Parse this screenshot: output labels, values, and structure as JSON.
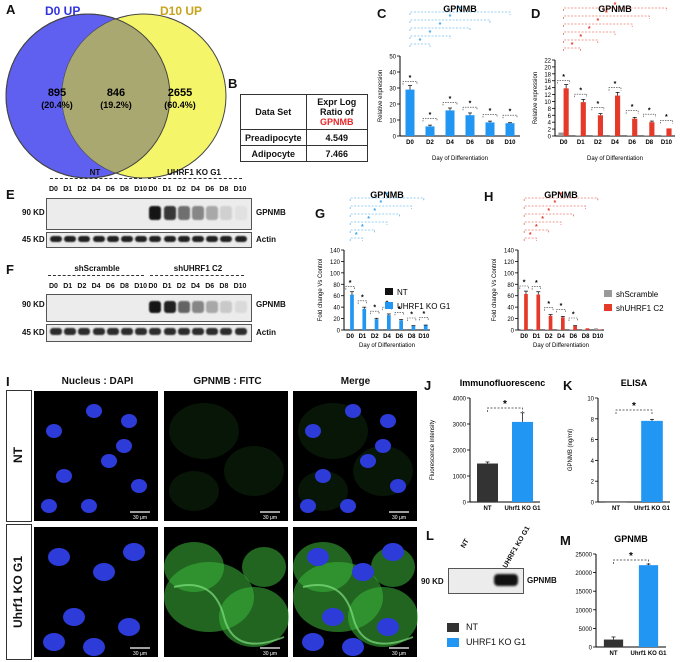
{
  "panels": {
    "A": "A",
    "B": "B",
    "C": "C",
    "D": "D",
    "E": "E",
    "F": "F",
    "G": "G",
    "H": "H",
    "I": "I",
    "J": "J",
    "K": "K",
    "L": "L",
    "M": "M"
  },
  "venn": {
    "left_label": "D0 UP",
    "right_label": "D10 UP",
    "left_count": "895",
    "left_pct": "(20.4%)",
    "mid_count": "846",
    "mid_pct": "(19.2%)",
    "right_count": "2655",
    "right_pct": "(60.4%)",
    "left_color": "#5f5ff0",
    "right_color": "#f5f56a",
    "mid_color": "#a9a870"
  },
  "table": {
    "h1": "Data Set",
    "h2a": "Expr Log Ratio of",
    "h2b": "GPNMB",
    "r1a": "Preadipocyte",
    "r1b": "4.549",
    "r2a": "Adipocyte",
    "r2b": "7.466"
  },
  "blots": {
    "E": {
      "group1": "NT",
      "group2": "UHRF1 KO G1",
      "mw1": "90 KD",
      "mw2": "45 KD",
      "prot": "GPNMB",
      "ctrl": "Actin"
    },
    "F": {
      "group1": "shScramble",
      "group2": "shUHRF1 C2",
      "mw1": "90 KD",
      "mw2": "45 KD",
      "prot": "GPNMB",
      "ctrl": "Actin"
    },
    "lanes": [
      "D0",
      "D1",
      "D2",
      "D4",
      "D6",
      "D8",
      "D10",
      "D0",
      "D1",
      "D2",
      "D4",
      "D6",
      "D8",
      "D10"
    ],
    "L": {
      "lane1": "NT",
      "lane2": "UHRF1 KO G1",
      "mw": "90 KD",
      "prot": "GPNMB"
    }
  },
  "micro": {
    "col1": "Nucleus : DAPI",
    "col2": "GPNMB : FITC",
    "col3": "Merge",
    "row1": "NT",
    "row2": "Uhrf1 KO G1",
    "scale": "30 μm"
  },
  "chart_data": [
    {
      "id": "C",
      "type": "bar",
      "title": "GPNMB",
      "ylabel": "Relative expression",
      "xlabel": "Day of Differentiation",
      "categories": [
        "D0",
        "D2",
        "D4",
        "D6",
        "D8",
        "D10"
      ],
      "values": [
        29,
        6,
        16,
        13,
        8.5,
        8
      ],
      "errors": [
        2.5,
        0.8,
        1.5,
        1.4,
        0.8,
        0.3
      ],
      "yticks": [
        "0",
        "10",
        "20",
        "30",
        "40",
        "50"
      ],
      "ylim": [
        0,
        50
      ],
      "star": "*",
      "color": "#2196f3"
    },
    {
      "id": "D",
      "type": "bar",
      "title": "GPNMB",
      "ylabel": "Relative expression",
      "xlabel": "Day of Differentiation",
      "categories": [
        "D0",
        "D1",
        "D2",
        "D4",
        "D6",
        "D8",
        "D10"
      ],
      "series": [
        {
          "name": "",
          "values": [
            1,
            0.2,
            0.2,
            0.2,
            0.2,
            0.2,
            0.2
          ]
        },
        {
          "name": "",
          "values": [
            13.8,
            9.8,
            6,
            11.7,
            5,
            4,
            2.2
          ]
        }
      ],
      "yticks": [
        "0",
        "2",
        "4",
        "6",
        "8",
        "10",
        "12",
        "14",
        "16",
        "18",
        "20",
        "22"
      ],
      "ylim": [
        0,
        22
      ],
      "star": "*",
      "colors": [
        "#999999",
        "#e53a2a"
      ]
    },
    {
      "id": "G",
      "type": "bar",
      "title": "GPNMB",
      "ylabel": "Fold change Vs Control",
      "xlabel": "Day of Differentiation",
      "categories": [
        "D0",
        "D1",
        "D2",
        "D4",
        "D6",
        "D8",
        "D10"
      ],
      "series": [
        {
          "name": "NT",
          "values": [
            1,
            1,
            1,
            1,
            1,
            1,
            1
          ]
        },
        {
          "name": "UHRF1 KO G1",
          "values": [
            62,
            37,
            19,
            26,
            17,
            7,
            8
          ]
        }
      ],
      "yticks": [
        "0",
        "20",
        "40",
        "60",
        "80",
        "100",
        "120",
        "140"
      ],
      "ylim": [
        0,
        140
      ],
      "star": "*",
      "colors": [
        "#111111",
        "#2196f3"
      ]
    },
    {
      "id": "H",
      "type": "bar",
      "title": "GPNMB",
      "ylabel": "Fold change Vs Control",
      "xlabel": "Day of Differentiation",
      "categories": [
        "D0",
        "D1",
        "D2",
        "D4",
        "D6",
        "D8",
        "D10"
      ],
      "series": [
        {
          "name": "shScramble",
          "values": [
            1,
            1,
            1,
            1,
            1,
            1,
            3
          ]
        },
        {
          "name": "shUHRF1 C2",
          "values": [
            63,
            62,
            25,
            22,
            7,
            3,
            1
          ]
        }
      ],
      "yticks": [
        "0",
        "20",
        "40",
        "60",
        "80",
        "100",
        "120",
        "140"
      ],
      "ylim": [
        0,
        140
      ],
      "star": "*",
      "colors": [
        "#999999",
        "#e53a2a"
      ]
    },
    {
      "id": "J",
      "type": "bar",
      "title": "Immunofluorescence",
      "ylabel": "Fluorescence Intensity",
      "categories": [
        "NT",
        "Uhrf1 KO G1"
      ],
      "values": [
        1480,
        3080
      ],
      "errors": [
        60,
        350
      ],
      "yticks": [
        "0",
        "1000",
        "2000",
        "3000",
        "4000"
      ],
      "ylim": [
        0,
        4000
      ],
      "star": "*",
      "colors": [
        "#333333",
        "#2196f3"
      ]
    },
    {
      "id": "K",
      "type": "bar",
      "title": "ELISA",
      "ylabel": "GPNMB (ng/ml)",
      "categories": [
        "NT",
        "Uhrf1 KO G1"
      ],
      "values": [
        0,
        7.8
      ],
      "errors": [
        0,
        0.15
      ],
      "yticks": [
        "0",
        "2",
        "4",
        "6",
        "8",
        "10"
      ],
      "ylim": [
        0,
        10
      ],
      "star": "*",
      "colors": [
        "#333333",
        "#2196f3"
      ]
    },
    {
      "id": "M",
      "type": "bar",
      "title": "GPNMB",
      "ylabel": "",
      "categories": [
        "NT",
        "Uhrf1 KO G1"
      ],
      "values": [
        2000,
        22000
      ],
      "errors": [
        700,
        300
      ],
      "yticks": [
        "0",
        "5000",
        "10000",
        "15000",
        "20000",
        "25000"
      ],
      "ylim": [
        0,
        25000
      ],
      "star": "*",
      "colors": [
        "#333333",
        "#2196f3"
      ]
    }
  ],
  "legendL": {
    "a": "NT",
    "b": "UHRF1 KO G1"
  }
}
